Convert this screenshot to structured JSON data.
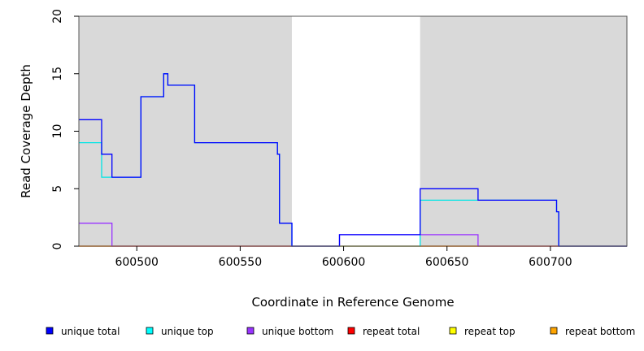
{
  "chart_data": {
    "type": "line",
    "xlabel": "Coordinate in Reference Genome",
    "ylabel": "Read Coverage Depth",
    "xlim": [
      600472,
      600737
    ],
    "ylim": [
      0,
      20
    ],
    "x_ticks": [
      600500,
      600550,
      600600,
      600650,
      600700
    ],
    "x_tick_labels": [
      "600500",
      "600550",
      "600600",
      "600650",
      "600700"
    ],
    "y_ticks": [
      0,
      5,
      10,
      15,
      20
    ],
    "y_tick_labels": [
      "0",
      "5",
      "10",
      "15",
      "20"
    ],
    "background_regions": [
      {
        "x0": 600472,
        "x1": 600575,
        "color": "#d9d9d9"
      },
      {
        "x0": 600575,
        "x1": 600637,
        "color": "#ffffff"
      },
      {
        "x0": 600637,
        "x1": 600737,
        "color": "#d9d9d9"
      }
    ],
    "series": [
      {
        "name": "repeat bottom",
        "color": "#FFA500",
        "points": [
          [
            600472,
            0
          ],
          [
            600737,
            0
          ]
        ]
      },
      {
        "name": "repeat top",
        "color": "#FFFF00",
        "points": [
          [
            600472,
            0
          ],
          [
            600737,
            0
          ]
        ]
      },
      {
        "name": "repeat total",
        "color": "#FF0000",
        "points": [
          [
            600472,
            0
          ],
          [
            600737,
            0
          ]
        ]
      },
      {
        "name": "unique bottom",
        "color": "#9933FF",
        "points": [
          [
            600472,
            2
          ],
          [
            600488,
            2
          ],
          [
            600488,
            0
          ],
          [
            600598,
            0
          ],
          [
            600598,
            1
          ],
          [
            600637,
            1
          ],
          [
            600637,
            1
          ],
          [
            600665,
            1
          ],
          [
            600665,
            0
          ],
          [
            600737,
            0
          ]
        ]
      },
      {
        "name": "unique top",
        "color": "#00E5E5",
        "points": [
          [
            600472,
            9
          ],
          [
            600483,
            9
          ],
          [
            600483,
            6
          ],
          [
            600502,
            6
          ],
          [
            600502,
            13
          ],
          [
            600513,
            13
          ],
          [
            600513,
            15
          ],
          [
            600515,
            15
          ],
          [
            600515,
            14
          ],
          [
            600528,
            14
          ],
          [
            600528,
            9
          ],
          [
            600568,
            9
          ],
          [
            600568,
            8
          ],
          [
            600569,
            8
          ],
          [
            600569,
            2
          ],
          [
            600575,
            2
          ],
          [
            600575,
            0
          ],
          [
            600637,
            0
          ],
          [
            600637,
            4
          ],
          [
            600665,
            4
          ],
          [
            600665,
            4
          ],
          [
            600703,
            4
          ],
          [
            600703,
            3
          ],
          [
            600704,
            3
          ],
          [
            600704,
            0
          ],
          [
            600737,
            0
          ]
        ]
      },
      {
        "name": "unique total",
        "color": "#0000FF",
        "points": [
          [
            600472,
            11
          ],
          [
            600483,
            11
          ],
          [
            600483,
            8
          ],
          [
            600488,
            8
          ],
          [
            600488,
            6
          ],
          [
            600502,
            6
          ],
          [
            600502,
            13
          ],
          [
            600513,
            13
          ],
          [
            600513,
            15
          ],
          [
            600515,
            15
          ],
          [
            600515,
            14
          ],
          [
            600528,
            14
          ],
          [
            600528,
            9
          ],
          [
            600568,
            9
          ],
          [
            600568,
            8
          ],
          [
            600569,
            8
          ],
          [
            600569,
            2
          ],
          [
            600575,
            2
          ],
          [
            600575,
            0
          ],
          [
            600598,
            0
          ],
          [
            600598,
            1
          ],
          [
            600637,
            1
          ],
          [
            600637,
            5
          ],
          [
            600665,
            5
          ],
          [
            600665,
            4
          ],
          [
            600703,
            4
          ],
          [
            600703,
            3
          ],
          [
            600704,
            3
          ],
          [
            600704,
            0
          ],
          [
            600737,
            0
          ]
        ]
      }
    ],
    "legend": [
      {
        "label": "unique total",
        "color": "#0000FF"
      },
      {
        "label": "unique top",
        "color": "#00FFFF"
      },
      {
        "label": "unique bottom",
        "color": "#9933FF"
      },
      {
        "label": "repeat total",
        "color": "#FF0000"
      },
      {
        "label": "repeat top",
        "color": "#FFFF00"
      },
      {
        "label": "repeat bottom",
        "color": "#FFA500"
      }
    ],
    "legend_position": "bottom",
    "grid": false
  }
}
